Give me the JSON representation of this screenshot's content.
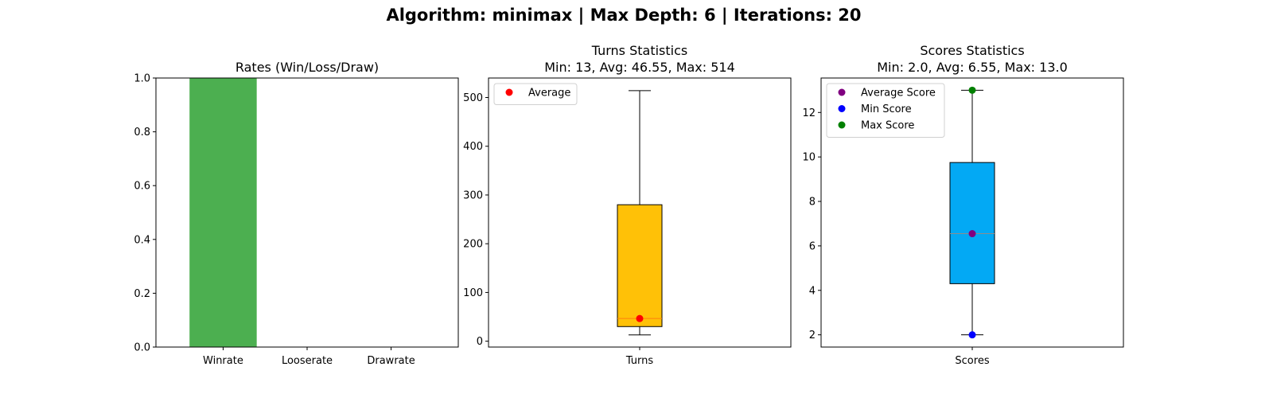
{
  "figure": {
    "suptitle": "Algorithm: minimax | Max Depth: 6 | Iterations: 20"
  },
  "chart_data": [
    {
      "type": "bar",
      "title": "Rates (Win/Loss/Draw)",
      "categories": [
        "Winrate",
        "Looserate",
        "Drawrate"
      ],
      "values": [
        1.0,
        0.0,
        0.0
      ],
      "ylim": [
        0,
        1.0
      ],
      "yticks": [
        "0.0",
        "0.2",
        "0.4",
        "0.6",
        "0.8",
        "1.0"
      ],
      "xlabel": "",
      "ylabel": "",
      "color": "#4caf50",
      "grid": false
    },
    {
      "type": "box",
      "title": "Turns Statistics",
      "subtitle": "Min: 13, Avg: 46.55, Max: 514",
      "categories": [
        "Turns"
      ],
      "box": {
        "min": 13,
        "q1": 30,
        "median": 46.55,
        "q3": 280,
        "max": 514
      },
      "ylim": [
        -12,
        540
      ],
      "yticks": [
        "0",
        "100",
        "200",
        "300",
        "400",
        "500"
      ],
      "box_color": "#ffc107",
      "median_color": "#ff7f0e",
      "markers": [
        {
          "name": "Average",
          "value": 46.55,
          "color": "#ff0000"
        }
      ],
      "legend": {
        "position": "upper-left",
        "entries": [
          "Average"
        ]
      },
      "grid": false
    },
    {
      "type": "box",
      "title": "Scores Statistics",
      "subtitle": "Min: 2.0, Avg: 6.55, Max: 13.0",
      "categories": [
        "Scores"
      ],
      "box": {
        "min": 2.0,
        "q1": 4.3,
        "median": 6.55,
        "q3": 9.75,
        "max": 13.0
      },
      "ylim": [
        1.45,
        13.55
      ],
      "yticks": [
        "2",
        "4",
        "6",
        "8",
        "10",
        "12"
      ],
      "box_color": "#03a9f4",
      "median_color": "#8c8c8c",
      "markers": [
        {
          "name": "Average Score",
          "value": 6.55,
          "color": "#800080"
        },
        {
          "name": "Min Score",
          "value": 2.0,
          "color": "#0000ff"
        },
        {
          "name": "Max Score",
          "value": 13.0,
          "color": "#008000"
        }
      ],
      "legend": {
        "position": "upper-left",
        "entries": [
          "Average Score",
          "Min Score",
          "Max Score"
        ]
      },
      "grid": false
    }
  ]
}
